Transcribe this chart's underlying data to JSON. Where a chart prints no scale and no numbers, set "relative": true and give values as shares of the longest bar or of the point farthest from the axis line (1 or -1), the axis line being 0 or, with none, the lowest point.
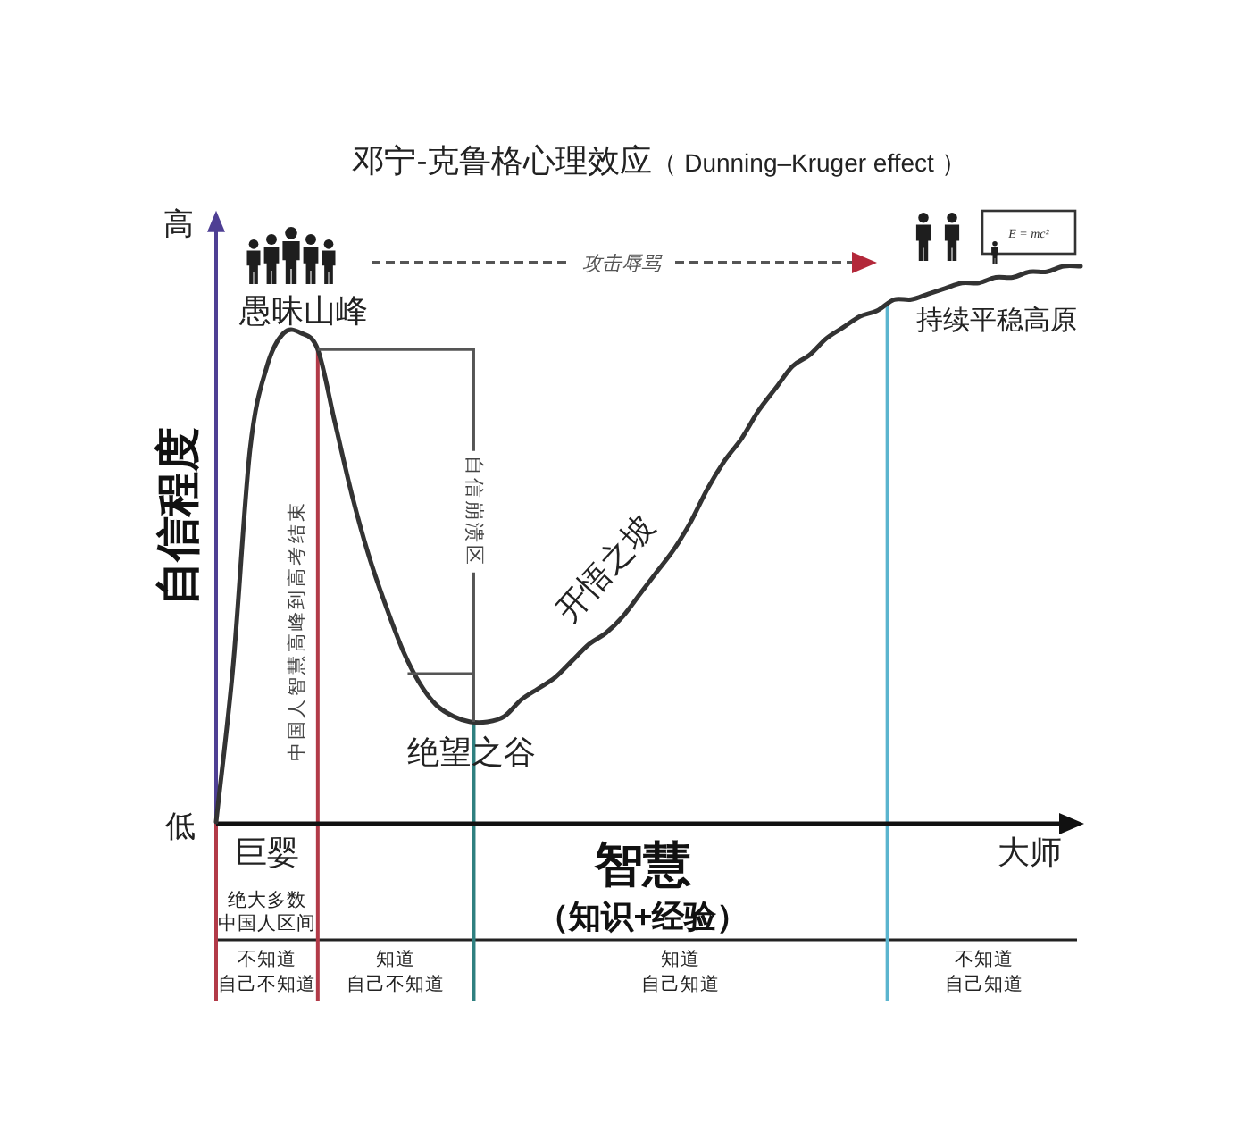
{
  "chart_data": {
    "type": "line",
    "title": "邓宁-克鲁格心理效应（ Dunning–Kruger effect ）",
    "xlabel": "智慧",
    "ylabel": "自信程度",
    "relative": true,
    "tick_labels": "x",
    "categories": [
      null,
      null,
      null,
      "巨婴",
      null,
      null,
      null,
      null,
      null,
      null,
      null,
      null,
      null,
      null,
      null,
      null,
      null,
      null,
      null,
      null,
      null,
      null,
      null,
      null,
      null,
      null,
      null,
      null,
      null,
      null,
      null,
      null,
      null,
      null,
      null,
      null,
      null,
      null,
      null,
      null,
      null,
      null,
      null,
      null,
      null,
      null,
      null,
      null,
      "大师",
      null,
      null,
      null
    ],
    "series": [
      {
        "color": "#333333",
        "values": [
          0,
          0.28,
          0.67,
          0.82,
          0.88,
          0.88,
          0.85,
          0.72,
          0.59,
          0.48,
          0.39,
          0.31,
          0.25,
          0.21,
          0.19,
          0.18,
          0.18,
          0.19,
          0.22,
          0.24,
          0.26,
          0.29,
          0.32,
          0.34,
          0.37,
          0.41,
          0.45,
          0.49,
          0.54,
          0.6,
          0.65,
          0.69,
          0.74,
          0.78,
          0.82,
          0.84,
          0.87,
          0.89,
          0.91,
          0.92,
          0.94,
          0.94,
          0.95,
          0.96,
          0.97,
          0.97,
          0.98,
          0.98,
          0.99,
          0.99,
          1,
          1
        ]
      }
    ],
    "annotations": [
      "愚昧山峰",
      "绝望之谷",
      "开悟之坡",
      "持续平稳高原",
      "高",
      "低",
      "（知识+经验）",
      "绝大多数",
      "中国人区间",
      "不知道",
      "自己不知道",
      "知道",
      "自己不知道",
      "知道",
      "自己知道",
      "不知道",
      "自己知道",
      "中国人智慧高峰到高考结束",
      "自信崩溃区",
      "攻击辱骂",
      "E = mc²"
    ]
  }
}
